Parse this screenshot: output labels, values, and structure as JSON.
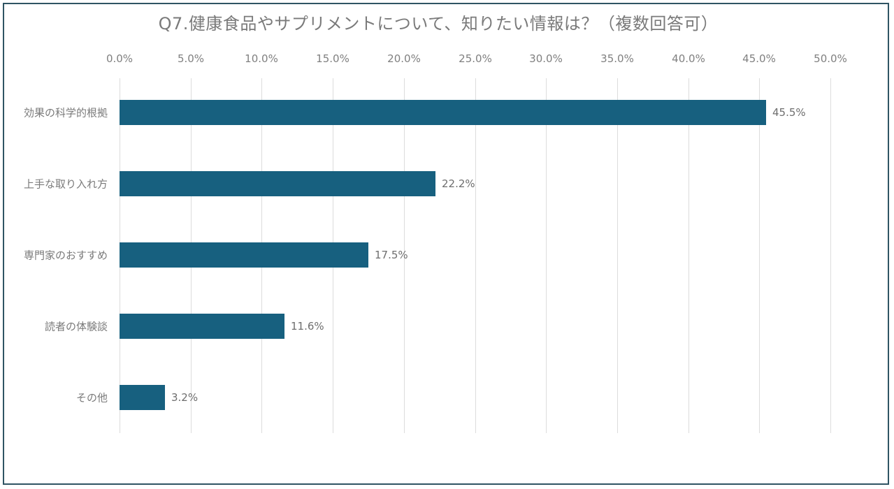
{
  "chart_data": {
    "type": "bar",
    "orientation": "horizontal",
    "title": "Q7.健康食品やサプリメントについて、知りたい情報は？（複数回答可）",
    "categories": [
      "効果の科学的根拠",
      "上手な取り入れ方",
      "専門家のおすすめ",
      "読者の体験談",
      "その他"
    ],
    "values": [
      45.5,
      22.2,
      17.5,
      11.6,
      3.2
    ],
    "value_labels": [
      "45.5%",
      "22.2%",
      "17.5%",
      "11.6%",
      "3.2%"
    ],
    "xlabel": "",
    "ylabel": "",
    "xlim": [
      0,
      50
    ],
    "x_ticks": [
      "0.0%",
      "5.0%",
      "10.0%",
      "15.0%",
      "20.0%",
      "25.0%",
      "30.0%",
      "35.0%",
      "40.0%",
      "45.0%",
      "50.0%"
    ],
    "x_axis_position": "top",
    "grid": true,
    "legend": null,
    "bar_color": "#17607F"
  }
}
